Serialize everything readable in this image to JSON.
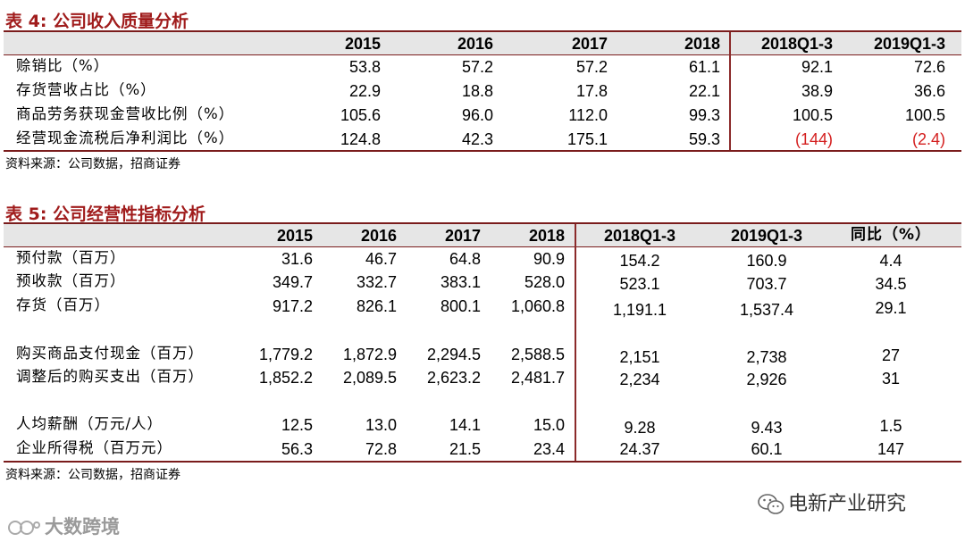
{
  "table4": {
    "title": "表 4:  公司收入质量分析",
    "columns": [
      "2015",
      "2016",
      "2017",
      "2018",
      "2018Q1-3",
      "2019Q1-3"
    ],
    "rows": [
      {
        "label": "赊销比（%）",
        "values": [
          "53.8",
          "57.2",
          "57.2",
          "61.1",
          "92.1",
          "72.6"
        ]
      },
      {
        "label": "存货营收占比（%）",
        "values": [
          "22.9",
          "18.8",
          "17.8",
          "22.1",
          "38.9",
          "36.6"
        ]
      },
      {
        "label": "商品劳务获现金营收比例（%）",
        "values": [
          "105.6",
          "96.0",
          "112.0",
          "99.3",
          "100.5",
          "100.5"
        ]
      },
      {
        "label": "经营现金流税后净利润比（%）",
        "values": [
          "124.8",
          "42.3",
          "175.1",
          "59.3",
          "(144)",
          "(2.4)"
        ]
      }
    ],
    "source": "资料来源：公司数据，招商证券",
    "negative_color": "#d42020"
  },
  "table5": {
    "title": "表 5:  公司经营性指标分析",
    "columns": [
      "2015",
      "2016",
      "2017",
      "2018",
      "2018Q1-3",
      "2019Q1-3",
      "同比（%）"
    ],
    "rows": [
      {
        "label": "预付款（百万）",
        "values": [
          "31.6",
          "46.7",
          "64.8",
          "90.9",
          "154.2",
          "160.9",
          "4.4"
        ]
      },
      {
        "label": "预收款（百万）",
        "values": [
          "349.7",
          "332.7",
          "383.1",
          "528.0",
          "523.1",
          "703.7",
          "34.5"
        ]
      },
      {
        "label": "存货（百万）",
        "values": [
          "917.2",
          "826.1",
          "800.1",
          "1,060.8",
          "1,191.1",
          "1,537.4",
          "29.1"
        ]
      },
      {
        "label": "购买商品支付现金（百万）",
        "values": [
          "1,779.2",
          "1,872.9",
          "2,294.5",
          "2,588.5",
          "2,151",
          "2,738",
          "27"
        ]
      },
      {
        "label": "调整后的购买支出（百万）",
        "values": [
          "1,852.2",
          "2,089.5",
          "2,623.2",
          "2,481.7",
          "2,234",
          "2,926",
          "31"
        ]
      },
      {
        "label": "人均薪酬（万元/人）",
        "values": [
          "12.5",
          "13.0",
          "14.1",
          "15.0",
          "9.28",
          "9.43",
          "1.5"
        ]
      },
      {
        "label": "企业所得税（百万元）",
        "values": [
          "56.3",
          "72.8",
          "21.5",
          "23.4",
          "24.37",
          "60.1",
          "147"
        ]
      }
    ],
    "source": "资料来源：公司数据，招商证券"
  },
  "watermarks": {
    "right": "电新产业研究",
    "left": "大数跨境"
  },
  "colors": {
    "title": "#a01c1c",
    "rule": "#7a1c1c",
    "header_bg": "#e6e6e6"
  }
}
